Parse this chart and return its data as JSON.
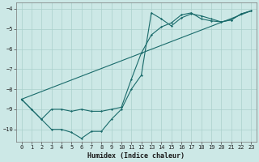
{
  "xlabel": "Humidex (Indice chaleur)",
  "xlim": [
    -0.5,
    23.5
  ],
  "ylim": [
    -10.6,
    -3.7
  ],
  "yticks": [
    -10,
    -9,
    -8,
    -7,
    -6,
    -5,
    -4
  ],
  "xticks": [
    0,
    1,
    2,
    3,
    4,
    5,
    6,
    7,
    8,
    9,
    10,
    11,
    12,
    13,
    14,
    15,
    16,
    17,
    18,
    19,
    20,
    21,
    22,
    23
  ],
  "bg_color": "#cce8e6",
  "grid_color": "#aad0cc",
  "line_color": "#1a6b6b",
  "line1_x": [
    0,
    1,
    2,
    3,
    4,
    5,
    6,
    7,
    8,
    9,
    10,
    11,
    12,
    13,
    14,
    15,
    16,
    17,
    18,
    19,
    20,
    21,
    22,
    23
  ],
  "line1_y": [
    -8.5,
    -9.0,
    -9.5,
    -10.0,
    -10.0,
    -10.15,
    -10.45,
    -10.1,
    -10.1,
    -9.5,
    -9.0,
    -8.0,
    -7.3,
    -4.2,
    -4.5,
    -4.85,
    -4.45,
    -4.25,
    -4.35,
    -4.5,
    -4.65,
    -4.55,
    -4.25,
    -4.1
  ],
  "line2_x": [
    0,
    1,
    2,
    3,
    4,
    5,
    6,
    7,
    8,
    9,
    10,
    11,
    12,
    13,
    14,
    15,
    16,
    17,
    18,
    19,
    20,
    21,
    22,
    23
  ],
  "line2_y": [
    -8.5,
    -9.0,
    -9.5,
    -9.0,
    -9.0,
    -9.1,
    -9.0,
    -9.1,
    -9.1,
    -9.0,
    -8.9,
    -7.5,
    -6.2,
    -5.3,
    -4.9,
    -4.7,
    -4.3,
    -4.2,
    -4.5,
    -4.6,
    -4.65,
    -4.55,
    -4.25,
    -4.1
  ],
  "line3_x": [
    0,
    23
  ],
  "line3_y": [
    -8.5,
    -4.1
  ]
}
